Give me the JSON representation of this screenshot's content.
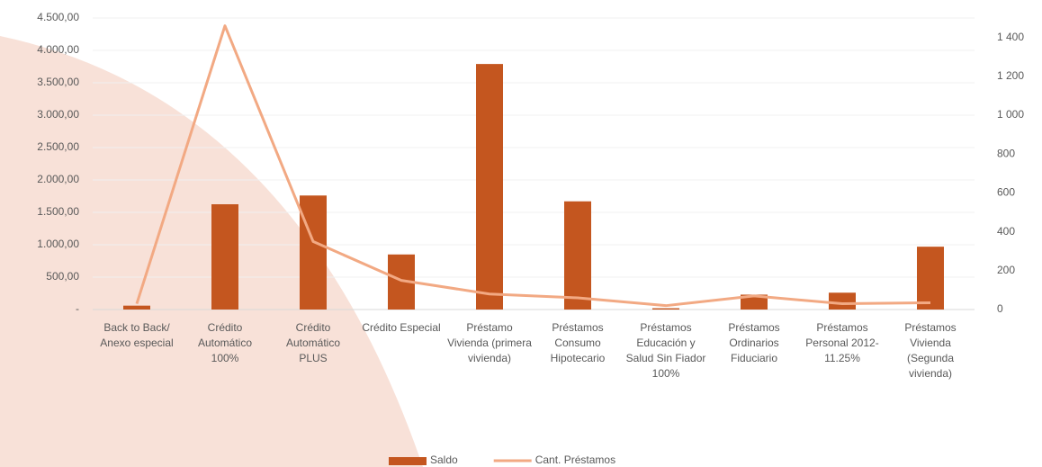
{
  "chart_data": {
    "type": "bar-line",
    "categories": [
      "Back to Back/ Anexo especial",
      "Crédito Automático 100%",
      "Crédito Automático PLUS",
      "Crédito Especial",
      "Préstamo Vivienda (primera vivienda)",
      "Préstamos Consumo Hipotecario",
      "Préstamos Educación y Salud Sin Fiador 100%",
      "Préstamos Ordinarios Fiduciario",
      "Préstamos Personal 2012-11.25%",
      "Préstamos Vivienda (Segunda vivienda)"
    ],
    "series": [
      {
        "name": "Saldo",
        "type": "bar",
        "color": "#c4561f",
        "values": [
          60,
          1625,
          1760,
          850,
          3790,
          1670,
          20,
          230,
          260,
          970
        ]
      },
      {
        "name": "Cant. Préstamos",
        "type": "line",
        "color": "#f2a983",
        "axis": "y2",
        "values": [
          30,
          1460,
          350,
          150,
          80,
          60,
          20,
          70,
          30,
          35
        ]
      }
    ],
    "ylim": [
      0,
      4500
    ],
    "yticks": [
      {
        "value": 0,
        "label": "-"
      },
      {
        "value": 500,
        "label": "500,00"
      },
      {
        "value": 1000,
        "label": "1.000,00"
      },
      {
        "value": 1500,
        "label": "1.500,00"
      },
      {
        "value": 2000,
        "label": "2.000,00"
      },
      {
        "value": 2500,
        "label": "2.500,00"
      },
      {
        "value": 3000,
        "label": "3.000,00"
      },
      {
        "value": 3500,
        "label": "3.500,00"
      },
      {
        "value": 4000,
        "label": "4.000,00"
      },
      {
        "value": 4500,
        "label": "4.500,00"
      }
    ],
    "y2lim": [
      0,
      1500
    ],
    "y2ticks": [
      0,
      200,
      400,
      600,
      800,
      {
        "value": 1000,
        "label": "1 000"
      },
      {
        "value": 1200,
        "label": "1 200"
      },
      {
        "value": 1400,
        "label": "1 400"
      }
    ],
    "grid": true,
    "legend": "bottom"
  }
}
